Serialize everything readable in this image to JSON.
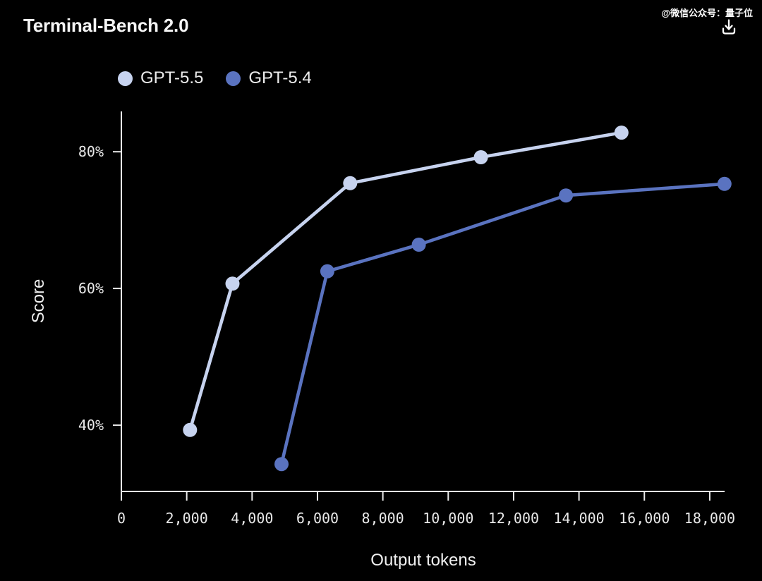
{
  "header": {
    "watermark": "@微信公众号：量子位",
    "download_icon": "download-icon"
  },
  "chart_data": {
    "type": "line",
    "title": "Terminal-Bench 2.0",
    "xlabel": "Output tokens",
    "ylabel": "Score",
    "xlim": [
      0,
      18455
    ],
    "ylim": [
      30.3,
      85.9
    ],
    "grid": false,
    "legend_position": "top-left",
    "background": "#000000",
    "x_ticks": {
      "values": [
        0,
        2000,
        4000,
        6000,
        8000,
        10000,
        12000,
        14000,
        16000,
        18000
      ],
      "labels": [
        "0",
        "2,000",
        "4,000",
        "6,000",
        "8,000",
        "10,000",
        "12,000",
        "14,000",
        "16,000",
        "18,000"
      ]
    },
    "y_ticks": {
      "values": [
        40,
        60,
        80
      ],
      "labels": [
        "40%",
        "60%",
        "80%"
      ]
    },
    "series": [
      {
        "id": "gpt-5-5",
        "name": "GPT-5.5",
        "color": "#c7d3ef",
        "points": [
          [
            2100,
            39.3
          ],
          [
            3400,
            60.7
          ],
          [
            7000,
            75.4
          ],
          [
            11000,
            79.2
          ],
          [
            15300,
            82.8
          ]
        ]
      },
      {
        "id": "gpt-5-4",
        "name": "GPT-5.4",
        "color": "#5a73c0",
        "points": [
          [
            4900,
            34.3
          ],
          [
            6300,
            62.5
          ],
          [
            9100,
            66.4
          ],
          [
            13600,
            73.6
          ],
          [
            18450,
            75.3
          ]
        ]
      }
    ]
  }
}
